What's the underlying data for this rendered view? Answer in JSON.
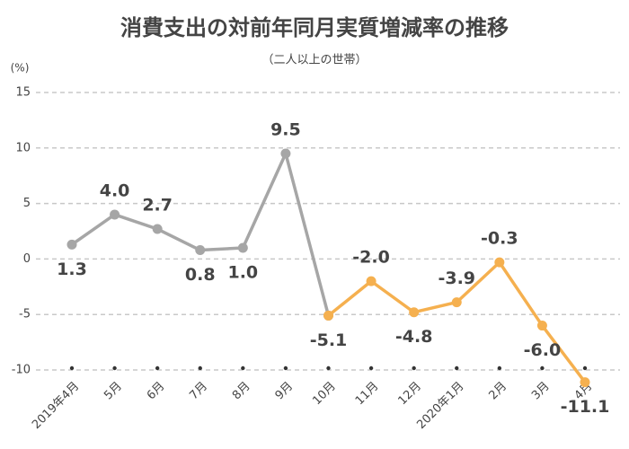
{
  "chart_data": {
    "type": "line",
    "title": "消費支出の対前年同月実質増減率の推移",
    "subtitle": "（二人以上の世帯）",
    "y_label": "(%)",
    "categories": [
      "2019年4月",
      "5月",
      "6月",
      "7月",
      "8月",
      "9月",
      "10月",
      "11月",
      "12月",
      "2020年1月",
      "2月",
      "3月",
      "4月"
    ],
    "series": [
      {
        "color": "#a6a6a6",
        "values": [
          1.3,
          4.0,
          2.7,
          0.8,
          1.0,
          9.5,
          -5.1,
          null,
          null,
          null,
          null,
          null,
          null
        ],
        "value_labels": [
          "1.3",
          "4.0",
          "2.7",
          "0.8",
          "1.0",
          "9.5",
          null,
          null,
          null,
          null,
          null,
          null,
          null
        ]
      },
      {
        "color": "#f5b04f",
        "values": [
          null,
          null,
          null,
          null,
          null,
          null,
          -5.1,
          -2.0,
          -4.8,
          -3.9,
          -0.3,
          -6.0,
          -11.1
        ],
        "value_labels": [
          null,
          null,
          null,
          null,
          null,
          null,
          "-5.1",
          "-2.0",
          "-4.8",
          "-3.9",
          "-0.3",
          "-6.0",
          "-11.1"
        ]
      }
    ],
    "ylim": [
      -10,
      15
    ],
    "yticks": [
      15,
      10,
      5,
      0,
      -5,
      -10
    ],
    "grid": true
  }
}
